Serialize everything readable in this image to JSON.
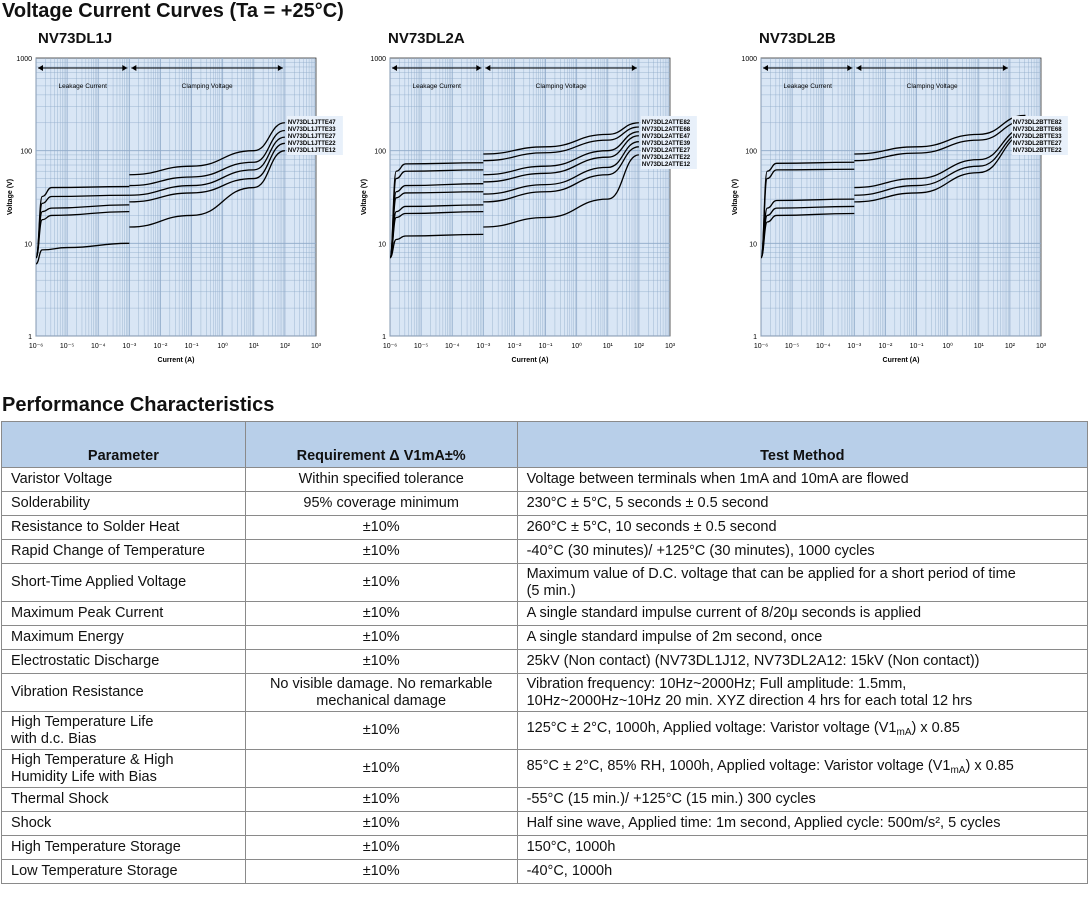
{
  "headings": {
    "curves": "Voltage Current Curves (Ta = +25°C)",
    "performance": "Performance Characteristics"
  },
  "colors": {
    "plot_bg": "#d9e6f5",
    "grid": "#8ea9c8",
    "header_bg": "#b8cfe9",
    "curve": "#000000"
  },
  "chart_data": [
    {
      "type": "line",
      "title": "NV73DL1J",
      "xlabel": "Current (A)",
      "ylabel": "Voltage (V)",
      "x_log_exponents": [
        -6,
        -5,
        -4,
        -3,
        -2,
        -1,
        0,
        1,
        2,
        3
      ],
      "y_ticks": [
        "1",
        "10",
        "100",
        "1000"
      ],
      "ylim": [
        1,
        1000
      ],
      "regions": [
        "Leakage Current",
        "Clamping Voltage"
      ],
      "legend": [
        "NV73DL1JTTE47",
        "NV73DL1JTTE33",
        "NV73DL1JTTE27",
        "NV73DL1JTTE22",
        "NV73DL1JTTE12"
      ],
      "series": [
        {
          "name": "NV73DL1JTTE47",
          "leakage": [
            [
              -6,
              7
            ],
            [
              -5.8,
              32
            ],
            [
              -5.5,
              40
            ],
            [
              -3,
              41
            ]
          ],
          "clamp": [
            [
              -3,
              55
            ],
            [
              -1,
              68
            ],
            [
              1,
              100
            ],
            [
              2,
              200
            ]
          ]
        },
        {
          "name": "NV73DL1JTTE33",
          "leakage": [
            [
              -6,
              7
            ],
            [
              -5.8,
              27
            ],
            [
              -5.5,
              32
            ],
            [
              -3,
              33
            ]
          ],
          "clamp": [
            [
              -3,
              42
            ],
            [
              -1,
              52
            ],
            [
              1,
              75
            ],
            [
              2,
              165
            ]
          ]
        },
        {
          "name": "NV73DL1JTTE27",
          "leakage": [
            [
              -6,
              7
            ],
            [
              -5.8,
              22
            ],
            [
              -5.5,
              24
            ],
            [
              -3,
              26
            ]
          ],
          "clamp": [
            [
              -3,
              33
            ],
            [
              -1,
              42
            ],
            [
              1,
              62
            ],
            [
              2,
              140
            ]
          ]
        },
        {
          "name": "NV73DL1JTTE22",
          "leakage": [
            [
              -6,
              7
            ],
            [
              -5.8,
              18
            ],
            [
              -5.5,
              20
            ],
            [
              -3,
              22
            ]
          ],
          "clamp": [
            [
              -3,
              28
            ],
            [
              -1,
              35
            ],
            [
              1,
              50
            ],
            [
              2,
              120
            ]
          ]
        },
        {
          "name": "NV73DL1JTTE12",
          "leakage": [
            [
              -6,
              6
            ],
            [
              -5.8,
              8.5
            ],
            [
              -5,
              9
            ],
            [
              -3,
              10
            ]
          ],
          "clamp": [
            [
              -3,
              15
            ],
            [
              -1,
              20
            ],
            [
              1,
              40
            ],
            [
              2,
              100
            ]
          ]
        }
      ]
    },
    {
      "type": "line",
      "title": "NV73DL2A",
      "xlabel": "Current (A)",
      "ylabel": "Voltage (V)",
      "x_log_exponents": [
        -6,
        -5,
        -4,
        -3,
        -2,
        -1,
        0,
        1,
        2,
        3
      ],
      "y_ticks": [
        "1",
        "10",
        "100",
        "1000"
      ],
      "ylim": [
        1,
        1000
      ],
      "regions": [
        "Leakage Current",
        "Clamping Voltage"
      ],
      "legend": [
        "NV73DL2ATTE82",
        "NV73DL2ATTE68",
        "NV73DL2ATTE47",
        "NV73DL2ATTE39",
        "NV73DL2ATTE27",
        "NV73DL2ATTE22",
        "NV73DL2ATTE12"
      ],
      "series": [
        {
          "name": "NV73DL2ATTE82",
          "leakage": [
            [
              -6,
              7
            ],
            [
              -5.8,
              60
            ],
            [
              -5.5,
              72
            ],
            [
              -3,
              74
            ]
          ],
          "clamp": [
            [
              -3,
              92
            ],
            [
              -1,
              110
            ],
            [
              1,
              150
            ],
            [
              2,
              200
            ]
          ]
        },
        {
          "name": "NV73DL2ATTE68",
          "leakage": [
            [
              -6,
              7
            ],
            [
              -5.8,
              50
            ],
            [
              -5.5,
              60
            ],
            [
              -3,
              62
            ]
          ],
          "clamp": [
            [
              -3,
              78
            ],
            [
              -1,
              95
            ],
            [
              1,
              130
            ],
            [
              2,
              180
            ]
          ]
        },
        {
          "name": "NV73DL2ATTE47",
          "leakage": [
            [
              -6,
              7
            ],
            [
              -5.8,
              36
            ],
            [
              -5.5,
              42
            ],
            [
              -3,
              44
            ]
          ],
          "clamp": [
            [
              -3,
              55
            ],
            [
              -1,
              68
            ],
            [
              1,
              100
            ],
            [
              2,
              160
            ]
          ]
        },
        {
          "name": "NV73DL2ATTE39",
          "leakage": [
            [
              -6,
              7
            ],
            [
              -5.8,
              31
            ],
            [
              -5.5,
              35
            ],
            [
              -3,
              36
            ]
          ],
          "clamp": [
            [
              -3,
              46
            ],
            [
              -1,
              57
            ],
            [
              1,
              85
            ],
            [
              2,
              145
            ]
          ]
        },
        {
          "name": "NV73DL2ATTE27",
          "leakage": [
            [
              -6,
              7
            ],
            [
              -5.8,
              22
            ],
            [
              -5.5,
              25
            ],
            [
              -3,
              26
            ]
          ],
          "clamp": [
            [
              -3,
              34
            ],
            [
              -1,
              43
            ],
            [
              1,
              66
            ],
            [
              2,
              125
            ]
          ]
        },
        {
          "name": "NV73DL2ATTE22",
          "leakage": [
            [
              -6,
              7
            ],
            [
              -5.8,
              19
            ],
            [
              -5.5,
              21
            ],
            [
              -3,
              22
            ]
          ],
          "clamp": [
            [
              -3,
              28
            ],
            [
              -1,
              36
            ],
            [
              1,
              55
            ],
            [
              2,
              110
            ]
          ]
        },
        {
          "name": "NV73DL2ATTE12",
          "leakage": [
            [
              -6,
              7
            ],
            [
              -5.8,
              11
            ],
            [
              -5.5,
              12
            ],
            [
              -3,
              12.5
            ]
          ],
          "clamp": [
            [
              -3,
              15
            ],
            [
              -1,
              19
            ],
            [
              1,
              30
            ],
            [
              2,
              90
            ]
          ]
        }
      ]
    },
    {
      "type": "line",
      "title": "NV73DL2B",
      "xlabel": "Current (A)",
      "ylabel": "Voltage (V)",
      "x_log_exponents": [
        -6,
        -5,
        -4,
        -3,
        -2,
        -1,
        0,
        1,
        2,
        3
      ],
      "y_ticks": [
        "1",
        "10",
        "100",
        "1000"
      ],
      "ylim": [
        1,
        1000
      ],
      "regions": [
        "Leakage Current",
        "Clamping Voltage"
      ],
      "legend": [
        "NV73DL2BTTE82",
        "NV73DL2BTTE68",
        "NV73DL2BTTE33",
        "NV73DL2BTTE27",
        "NV73DL2BTTE22"
      ],
      "series": [
        {
          "name": "NV73DL2BTTE82",
          "leakage": [
            [
              -6,
              7
            ],
            [
              -5.8,
              60
            ],
            [
              -5.5,
              73
            ],
            [
              -3,
              75
            ]
          ],
          "clamp": [
            [
              -3,
              92
            ],
            [
              -1,
              110
            ],
            [
              1,
              150
            ],
            [
              2.5,
              240
            ]
          ]
        },
        {
          "name": "NV73DL2BTTE68",
          "leakage": [
            [
              -6,
              7
            ],
            [
              -5.8,
              50
            ],
            [
              -5.5,
              62
            ],
            [
              -3,
              63
            ]
          ],
          "clamp": [
            [
              -3,
              78
            ],
            [
              -1,
              94
            ],
            [
              1,
              130
            ],
            [
              2.5,
              210
            ]
          ]
        },
        {
          "name": "NV73DL2BTTE33",
          "leakage": [
            [
              -6,
              7
            ],
            [
              -5.8,
              24
            ],
            [
              -5.5,
              29
            ],
            [
              -3,
              30
            ]
          ],
          "clamp": [
            [
              -3,
              40
            ],
            [
              -1,
              50
            ],
            [
              1,
              80
            ],
            [
              2.5,
              175
            ]
          ]
        },
        {
          "name": "NV73DL2BTTE27",
          "leakage": [
            [
              -6,
              7
            ],
            [
              -5.8,
              20
            ],
            [
              -5.5,
              24
            ],
            [
              -3,
              25
            ]
          ],
          "clamp": [
            [
              -3,
              33
            ],
            [
              -1,
              42
            ],
            [
              1,
              68
            ],
            [
              2.5,
              160
            ]
          ]
        },
        {
          "name": "NV73DL2BTTE22",
          "leakage": [
            [
              -6,
              7
            ],
            [
              -5.8,
              17
            ],
            [
              -5.5,
              20
            ],
            [
              -3,
              21
            ]
          ],
          "clamp": [
            [
              -3,
              28
            ],
            [
              -1,
              35
            ],
            [
              1,
              58
            ],
            [
              2.5,
              150
            ]
          ]
        }
      ]
    }
  ],
  "table": {
    "headers": [
      "Parameter",
      "Requirement Δ V1mA±%",
      "Test Method"
    ],
    "rows": [
      {
        "param": "Varistor Voltage",
        "req": "Within specified tolerance",
        "method": "Voltage between terminals when 1mA and 10mA are flowed"
      },
      {
        "param": "Solderability",
        "req": "95% coverage minimum",
        "method": "230°C ± 5°C, 5 seconds ± 0.5 second"
      },
      {
        "param": "Resistance to Solder Heat",
        "req": "±10%",
        "method": "260°C ± 5°C, 10 seconds ± 0.5 second"
      },
      {
        "param": "Rapid Change of Temperature",
        "req": "±10%",
        "method": "-40°C (30 minutes)/ +125°C (30 minutes), 1000 cycles"
      },
      {
        "param": "Short-Time Applied Voltage",
        "req": "±10%",
        "method": "Maximum value of D.C. voltage that can be applied for a short period of time",
        "method2": "(5 min.)"
      },
      {
        "param": "Maximum Peak Current",
        "req": "±10%",
        "method": "A single standard impulse current of 8/20μ seconds is applied"
      },
      {
        "param": "Maximum Energy",
        "req": "±10%",
        "method": "A single standard impulse of 2m second, once"
      },
      {
        "param": "Electrostatic Discharge",
        "req": "±10%",
        "method": "25kV (Non contact) (NV73DL1J12, NV73DL2A12: 15kV (Non contact))"
      },
      {
        "param": "Vibration Resistance",
        "req": "No visible damage. No remarkable",
        "req2": "mechanical damage",
        "method": "Vibration frequency: 10Hz~2000Hz; Full amplitude: 1.5mm,",
        "method2": "10Hz~2000Hz~10Hz 20 min. XYZ direction 4 hrs for each total 12 hrs"
      },
      {
        "param": "High Temperature Life",
        "param2": "with d.c. Bias",
        "req": "±10%",
        "method": "125°C ± 2°C, 1000h, Applied voltage: Varistor voltage (V1",
        "method_sub": "mA",
        "method_tail": ") x 0.85"
      },
      {
        "param": "High Temperature & High",
        "param2": "Humidity Life with Bias",
        "req": "±10%",
        "method": "85°C ± 2°C, 85% RH, 1000h, Applied voltage: Varistor voltage (V1",
        "method_sub": "mA",
        "method_tail": ") x 0.85"
      },
      {
        "param": "Thermal Shock",
        "req": "±10%",
        "method": "-55°C (15 min.)/ +125°C (15 min.) 300 cycles"
      },
      {
        "param": "Shock",
        "req": "±10%",
        "method": "Half sine wave, Applied time: 1m second, Applied cycle: 500m/s², 5 cycles"
      },
      {
        "param": "High Temperature Storage",
        "req": "±10%",
        "method": "150°C, 1000h"
      },
      {
        "param": "Low Temperature Storage",
        "req": "±10%",
        "method": "-40°C, 1000h"
      }
    ]
  }
}
